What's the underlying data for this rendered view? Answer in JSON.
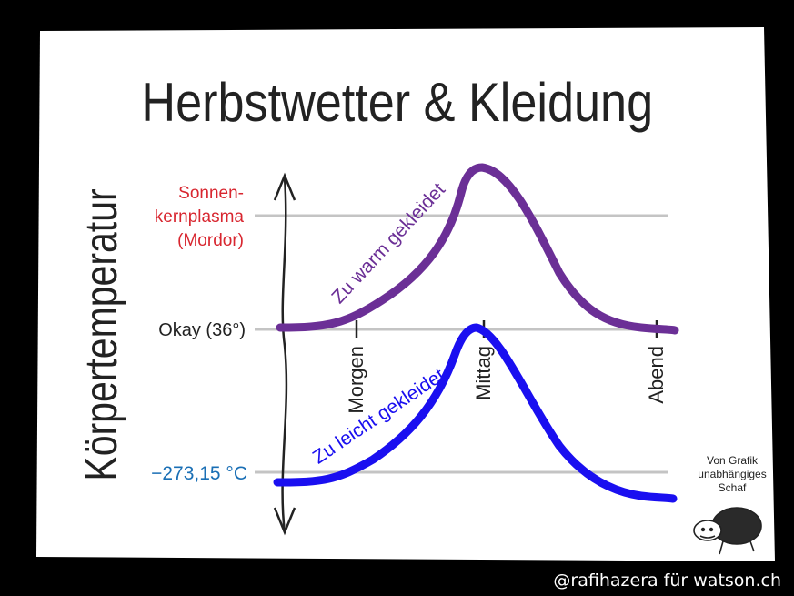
{
  "chart_data": {
    "type": "line",
    "title": "Herbstwetter & Kleidung",
    "ylabel": "Körpertemperatur",
    "y_ticks": [
      {
        "label": "Sonnen-\nkernplasma\n(Mordor)",
        "color": "#d8262f"
      },
      {
        "label": "Okay (36°)",
        "color": "#222222"
      },
      {
        "label": "−273,15 °C",
        "color": "#1a6fb5"
      }
    ],
    "x_ticks": [
      "Morgen",
      "Mittag",
      "Abend"
    ],
    "series": [
      {
        "name": "Zu warm gekleidet",
        "color": "#6b2f96",
        "level": "above Okay, peaks at Sonnenkernplasma near Mittag"
      },
      {
        "name": "Zu leicht gekleidet",
        "color": "#1a0ff0",
        "level": "at −273,15 °C, rises to Okay at Mittag"
      }
    ],
    "grid": true
  },
  "badge": {
    "text": "Von Grafik\nunabhängiges\nSchaf"
  },
  "credit": "@rafihazera für watson.ch"
}
